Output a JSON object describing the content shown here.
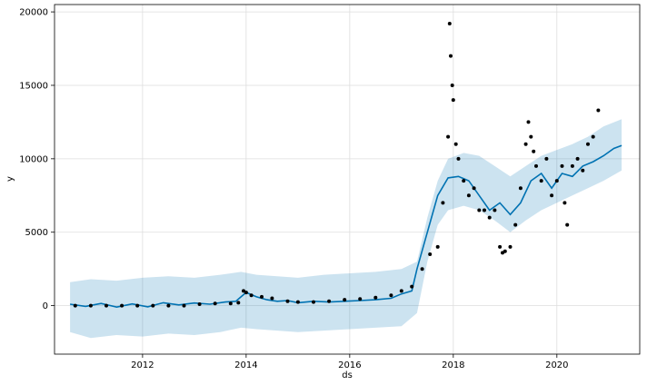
{
  "chart_data": {
    "type": "line",
    "title": "",
    "xlabel": "ds",
    "ylabel": "y",
    "xlim": [
      2010.3,
      2021.6
    ],
    "ylim": [
      -3300,
      20500
    ],
    "x_ticks": [
      2012,
      2014,
      2016,
      2018,
      2020
    ],
    "x_tick_labels": [
      "2012",
      "2014",
      "2016",
      "2018",
      "2020"
    ],
    "y_ticks": [
      0,
      5000,
      10000,
      15000,
      20000
    ],
    "y_tick_labels": [
      "0",
      "5000",
      "10000",
      "15000",
      "20000"
    ],
    "grid": true,
    "colors": {
      "forecast_line": "#0072B2",
      "uncertainty_band": "#0072B2",
      "observed_points": "#000000",
      "grid": "#dddddd"
    },
    "series": [
      {
        "kind": "forecast",
        "x": [
          2010.6,
          2010.9,
          2011.2,
          2011.5,
          2011.8,
          2012.1,
          2012.4,
          2012.7,
          2013.0,
          2013.3,
          2013.6,
          2013.8,
          2013.9,
          2014.0,
          2014.2,
          2014.4,
          2014.6,
          2014.8,
          2015.0,
          2015.3,
          2015.6,
          2015.9,
          2016.2,
          2016.5,
          2016.8,
          2017.0,
          2017.2,
          2017.3,
          2017.5,
          2017.7,
          2017.9,
          2018.1,
          2018.3,
          2018.5,
          2018.7,
          2018.9,
          2019.1,
          2019.3,
          2019.5,
          2019.7,
          2019.9,
          2020.1,
          2020.3,
          2020.5,
          2020.7,
          2020.9,
          2021.1,
          2021.25
        ],
        "y": [
          100,
          -50,
          150,
          -100,
          120,
          -80,
          200,
          50,
          180,
          100,
          250,
          300,
          600,
          900,
          600,
          400,
          300,
          350,
          200,
          300,
          250,
          300,
          350,
          400,
          500,
          800,
          1000,
          2500,
          5000,
          7500,
          8700,
          8800,
          8500,
          7500,
          6500,
          7000,
          6200,
          7000,
          8500,
          9000,
          8000,
          9000,
          8800,
          9500,
          9800,
          10200,
          10700,
          10900
        ]
      },
      {
        "kind": "band_upper",
        "x": [
          2010.6,
          2011.0,
          2011.5,
          2012.0,
          2012.5,
          2013.0,
          2013.5,
          2013.9,
          2014.2,
          2014.6,
          2015.0,
          2015.5,
          2016.0,
          2016.5,
          2017.0,
          2017.3,
          2017.5,
          2017.7,
          2017.9,
          2018.2,
          2018.5,
          2018.8,
          2019.1,
          2019.4,
          2019.7,
          2020.0,
          2020.3,
          2020.6,
          2020.9,
          2021.25
        ],
        "y": [
          1600,
          1800,
          1700,
          1900,
          2000,
          1900,
          2100,
          2300,
          2100,
          2000,
          1900,
          2100,
          2200,
          2300,
          2500,
          3000,
          6000,
          8500,
          10000,
          10400,
          10200,
          9500,
          8800,
          9500,
          10200,
          10600,
          11000,
          11500,
          12200,
          12700
        ]
      },
      {
        "kind": "band_lower",
        "x": [
          2010.6,
          2011.0,
          2011.5,
          2012.0,
          2012.5,
          2013.0,
          2013.5,
          2013.9,
          2014.2,
          2014.6,
          2015.0,
          2015.5,
          2016.0,
          2016.5,
          2017.0,
          2017.3,
          2017.5,
          2017.7,
          2017.9,
          2018.2,
          2018.5,
          2018.8,
          2019.1,
          2019.4,
          2019.7,
          2020.0,
          2020.3,
          2020.6,
          2020.9,
          2021.25
        ],
        "y": [
          -1800,
          -2200,
          -2000,
          -2100,
          -1900,
          -2000,
          -1800,
          -1500,
          -1600,
          -1700,
          -1800,
          -1700,
          -1600,
          -1500,
          -1400,
          -500,
          3000,
          5500,
          6500,
          6800,
          6500,
          5800,
          5000,
          5800,
          6500,
          7000,
          7500,
          8000,
          8500,
          9200
        ]
      },
      {
        "kind": "observed",
        "x": [
          2010.7,
          2011.0,
          2011.3,
          2011.6,
          2011.9,
          2012.2,
          2012.5,
          2012.8,
          2013.1,
          2013.4,
          2013.7,
          2013.85,
          2013.95,
          2014.0,
          2014.1,
          2014.3,
          2014.5,
          2014.8,
          2015.0,
          2015.3,
          2015.6,
          2015.9,
          2016.2,
          2016.5,
          2016.8,
          2017.0,
          2017.2,
          2017.4,
          2017.55,
          2017.7,
          2017.8,
          2017.9,
          2017.93,
          2017.95,
          2017.98,
          2018.0,
          2018.05,
          2018.1,
          2018.2,
          2018.3,
          2018.4,
          2018.5,
          2018.6,
          2018.7,
          2018.8,
          2018.9,
          2018.95,
          2019.0,
          2019.1,
          2019.2,
          2019.3,
          2019.4,
          2019.45,
          2019.5,
          2019.55,
          2019.6,
          2019.7,
          2019.8,
          2019.9,
          2020.0,
          2020.1,
          2020.15,
          2020.2,
          2020.3,
          2020.4,
          2020.5,
          2020.6,
          2020.7,
          2020.8
        ],
        "y": [
          0,
          0,
          0,
          0,
          0,
          0,
          0,
          0,
          100,
          150,
          150,
          200,
          1000,
          900,
          700,
          600,
          500,
          300,
          250,
          250,
          300,
          400,
          450,
          550,
          700,
          1000,
          1300,
          2500,
          3500,
          4000,
          7000,
          11500,
          19200,
          17000,
          15000,
          14000,
          11000,
          10000,
          8500,
          7500,
          8000,
          6500,
          6500,
          6000,
          6500,
          4000,
          3600,
          3700,
          4000,
          5500,
          8000,
          11000,
          12500,
          11500,
          10500,
          9500,
          8500,
          10000,
          7500,
          8500,
          9500,
          7000,
          5500,
          9500,
          10000,
          9200,
          11000,
          11500,
          13300
        ]
      }
    ]
  }
}
